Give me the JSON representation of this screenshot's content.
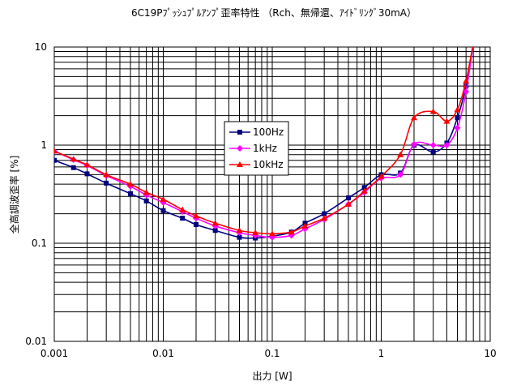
{
  "chart_data": {
    "type": "line",
    "title": "6C19Pﾌﾟｯｼｭﾌﾟﾙｱﾝﾌﾟ歪率特性 （Rch、無帰還、ｱｲﾄﾞﾘﾝｸﾞ30mA）",
    "xlabel": "出力 [W]",
    "ylabel": "全高調波歪率 [%]",
    "x_scale": "log",
    "y_scale": "log",
    "xlim": [
      0.001,
      10
    ],
    "ylim": [
      0.01,
      10
    ],
    "x_ticks": [
      0.001,
      0.01,
      0.1,
      1,
      10
    ],
    "x_tick_labels": [
      "0.001",
      "0.01",
      "0.1",
      "1",
      "10"
    ],
    "y_ticks": [
      0.01,
      0.1,
      1,
      10
    ],
    "y_tick_labels": [
      "0.01",
      "0.1",
      "1",
      "10"
    ],
    "grid": true,
    "legend_position": "center",
    "series": [
      {
        "name": "100Hz",
        "color": "#000080",
        "marker": "square",
        "x": [
          0.001,
          0.0015,
          0.002,
          0.003,
          0.005,
          0.007,
          0.01,
          0.015,
          0.02,
          0.03,
          0.05,
          0.07,
          0.1,
          0.15,
          0.2,
          0.3,
          0.5,
          0.7,
          1.0,
          1.5,
          2.0,
          3.0,
          4.0,
          5.0,
          6.0,
          7.0
        ],
        "y": [
          0.7,
          0.59,
          0.51,
          0.41,
          0.32,
          0.27,
          0.215,
          0.18,
          0.155,
          0.135,
          0.115,
          0.113,
          0.118,
          0.13,
          0.16,
          0.2,
          0.29,
          0.37,
          0.5,
          0.52,
          1.0,
          0.85,
          1.05,
          1.9,
          4.0,
          11.0
        ]
      },
      {
        "name": "1kHz",
        "color": "#ff00ff",
        "marker": "diamond",
        "x": [
          0.001,
          0.0015,
          0.002,
          0.003,
          0.005,
          0.007,
          0.01,
          0.015,
          0.02,
          0.03,
          0.05,
          0.07,
          0.1,
          0.15,
          0.2,
          0.3,
          0.5,
          0.7,
          1.0,
          1.5,
          2.0,
          3.0,
          4.0,
          5.0,
          6.0,
          7.0
        ],
        "y": [
          0.87,
          0.71,
          0.62,
          0.49,
          0.38,
          0.31,
          0.26,
          0.21,
          0.18,
          0.15,
          0.128,
          0.12,
          0.115,
          0.12,
          0.14,
          0.175,
          0.25,
          0.33,
          0.46,
          0.5,
          1.02,
          1.0,
          1.0,
          1.5,
          3.5,
          11.0
        ]
      },
      {
        "name": "10kHz",
        "color": "#ff0000",
        "marker": "triangle",
        "x": [
          0.001,
          0.0015,
          0.002,
          0.003,
          0.005,
          0.007,
          0.01,
          0.015,
          0.02,
          0.03,
          0.05,
          0.07,
          0.1,
          0.15,
          0.2,
          0.3,
          0.5,
          0.7,
          1.0,
          1.5,
          2.0,
          3.0,
          4.0,
          5.0,
          6.0,
          7.0
        ],
        "y": [
          0.87,
          0.72,
          0.63,
          0.5,
          0.4,
          0.33,
          0.28,
          0.22,
          0.19,
          0.16,
          0.135,
          0.128,
          0.125,
          0.13,
          0.15,
          0.18,
          0.25,
          0.34,
          0.48,
          0.8,
          1.9,
          2.2,
          1.75,
          2.3,
          4.5,
          11.0
        ]
      }
    ]
  }
}
